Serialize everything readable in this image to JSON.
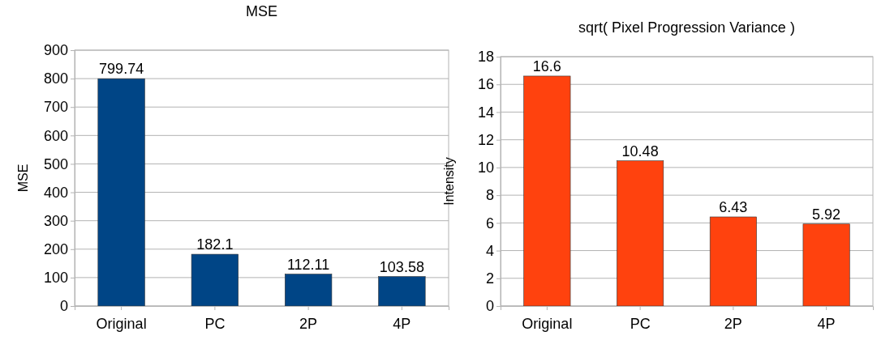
{
  "chart_data": [
    {
      "type": "bar",
      "title": "MSE",
      "ylabel": "MSE",
      "categories": [
        "Original",
        "PC",
        "2P",
        "4P"
      ],
      "values": [
        799.74,
        182.1,
        112.11,
        103.58
      ],
      "color": "#004586",
      "ylim": [
        0,
        900
      ],
      "yticks": [
        0,
        100,
        200,
        300,
        400,
        500,
        600,
        700,
        800,
        900
      ],
      "grid": "y",
      "data_labels": true
    },
    {
      "type": "bar",
      "title": "sqrt( Pixel Progression Variance )",
      "ylabel": "Intensity",
      "categories": [
        "Original",
        "PC",
        "2P",
        "4P"
      ],
      "values": [
        16.6,
        10.48,
        6.43,
        5.92
      ],
      "color": "#ff420e",
      "ylim": [
        0,
        18
      ],
      "yticks": [
        0,
        2,
        4,
        6,
        8,
        10,
        12,
        14,
        16,
        18
      ],
      "grid": "y",
      "data_labels": true
    }
  ]
}
